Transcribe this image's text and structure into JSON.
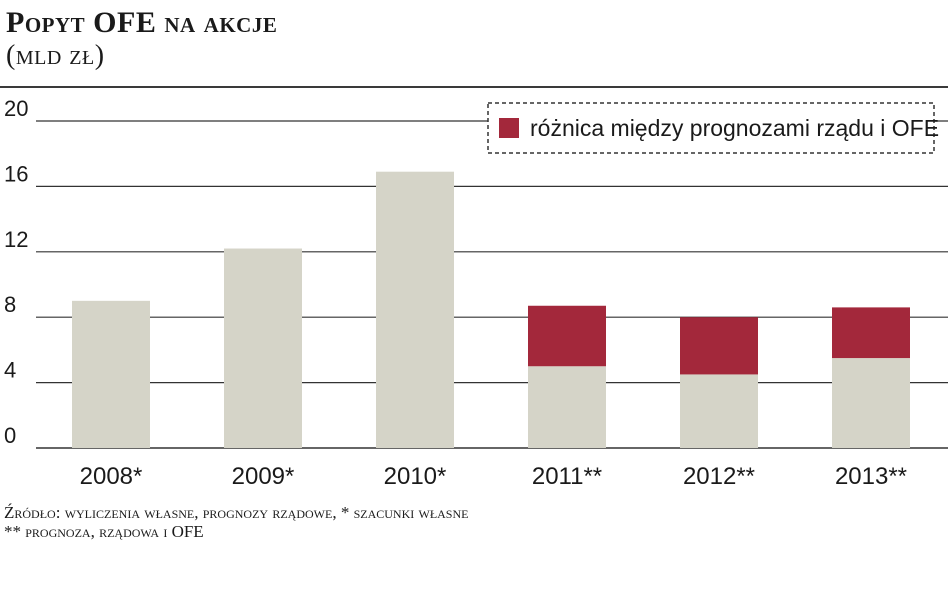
{
  "header": {
    "title": "Popyt OFE na akcje",
    "subtitle": "(mld zł)"
  },
  "chart_data": {
    "type": "bar",
    "stacked": true,
    "categories": [
      "2008*",
      "2009*",
      "2010*",
      "2011**",
      "2012**",
      "2013**"
    ],
    "series": [
      {
        "color": "#d5d4c8",
        "values": [
          9,
          12.2,
          16.9,
          5,
          4.5,
          5.5
        ]
      },
      {
        "name": "różnica między prognozami rządu i OFE",
        "color": "#a3283b",
        "values": [
          0,
          0,
          0,
          3.7,
          3.5,
          3.1
        ]
      }
    ],
    "yticks": [
      0,
      4,
      8,
      12,
      16,
      20
    ],
    "ylim": [
      0,
      20
    ],
    "grid": true,
    "legend_position": "top-right"
  },
  "source": {
    "line1": "Źródło: wyliczenia własne, prognozy rządowe, * szacunki własne",
    "line2": "** prognoza, rządowa i OFE"
  }
}
